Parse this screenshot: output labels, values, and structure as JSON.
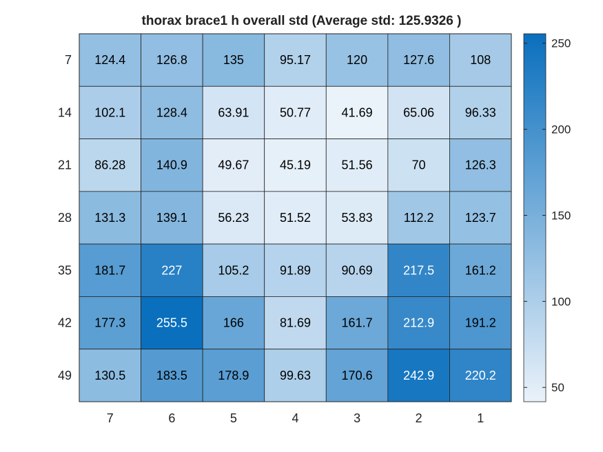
{
  "chart_data": {
    "type": "heatmap",
    "title": "thorax brace1 h overall std (Average std: 125.9326 )",
    "x_categories": [
      "7",
      "6",
      "5",
      "4",
      "3",
      "2",
      "1"
    ],
    "y_categories": [
      "7",
      "14",
      "21",
      "28",
      "35",
      "42",
      "49"
    ],
    "values": [
      [
        124.4,
        126.8,
        135,
        95.17,
        120,
        127.6,
        108
      ],
      [
        102.1,
        128.4,
        63.91,
        50.77,
        41.69,
        65.06,
        96.33
      ],
      [
        86.28,
        140.9,
        49.67,
        45.19,
        51.56,
        70,
        126.3
      ],
      [
        131.3,
        139.1,
        56.23,
        51.52,
        53.83,
        112.2,
        123.7
      ],
      [
        181.7,
        227,
        105.2,
        91.89,
        90.69,
        217.5,
        161.2
      ],
      [
        177.3,
        255.5,
        166,
        81.69,
        161.7,
        212.9,
        191.2
      ],
      [
        130.5,
        183.5,
        178.9,
        99.63,
        170.6,
        242.9,
        220.2
      ]
    ],
    "value_labels": [
      [
        "124.4",
        "126.8",
        "135",
        "95.17",
        "120",
        "127.6",
        "108"
      ],
      [
        "102.1",
        "128.4",
        "63.91",
        "50.77",
        "41.69",
        "65.06",
        "96.33"
      ],
      [
        "86.28",
        "140.9",
        "49.67",
        "45.19",
        "51.56",
        "70",
        "126.3"
      ],
      [
        "131.3",
        "139.1",
        "56.23",
        "51.52",
        "53.83",
        "112.2",
        "123.7"
      ],
      [
        "181.7",
        "227",
        "105.2",
        "91.89",
        "90.69",
        "217.5",
        "161.2"
      ],
      [
        "177.3",
        "255.5",
        "166",
        "81.69",
        "161.7",
        "212.9",
        "191.2"
      ],
      [
        "130.5",
        "183.5",
        "178.9",
        "99.63",
        "170.6",
        "242.9",
        "220.2"
      ]
    ],
    "colorbar": {
      "range": [
        41.69,
        255.5
      ],
      "ticks": [
        50,
        100,
        150,
        200,
        250
      ],
      "tick_labels": [
        "50",
        "100",
        "150",
        "200",
        "250"
      ]
    },
    "colors": {
      "low": "#eaf2fa",
      "high": "#0a6fbd",
      "text_dark": "#000000",
      "text_light": "#ffffff",
      "grid": "#222222"
    },
    "light_text_threshold": 200
  }
}
